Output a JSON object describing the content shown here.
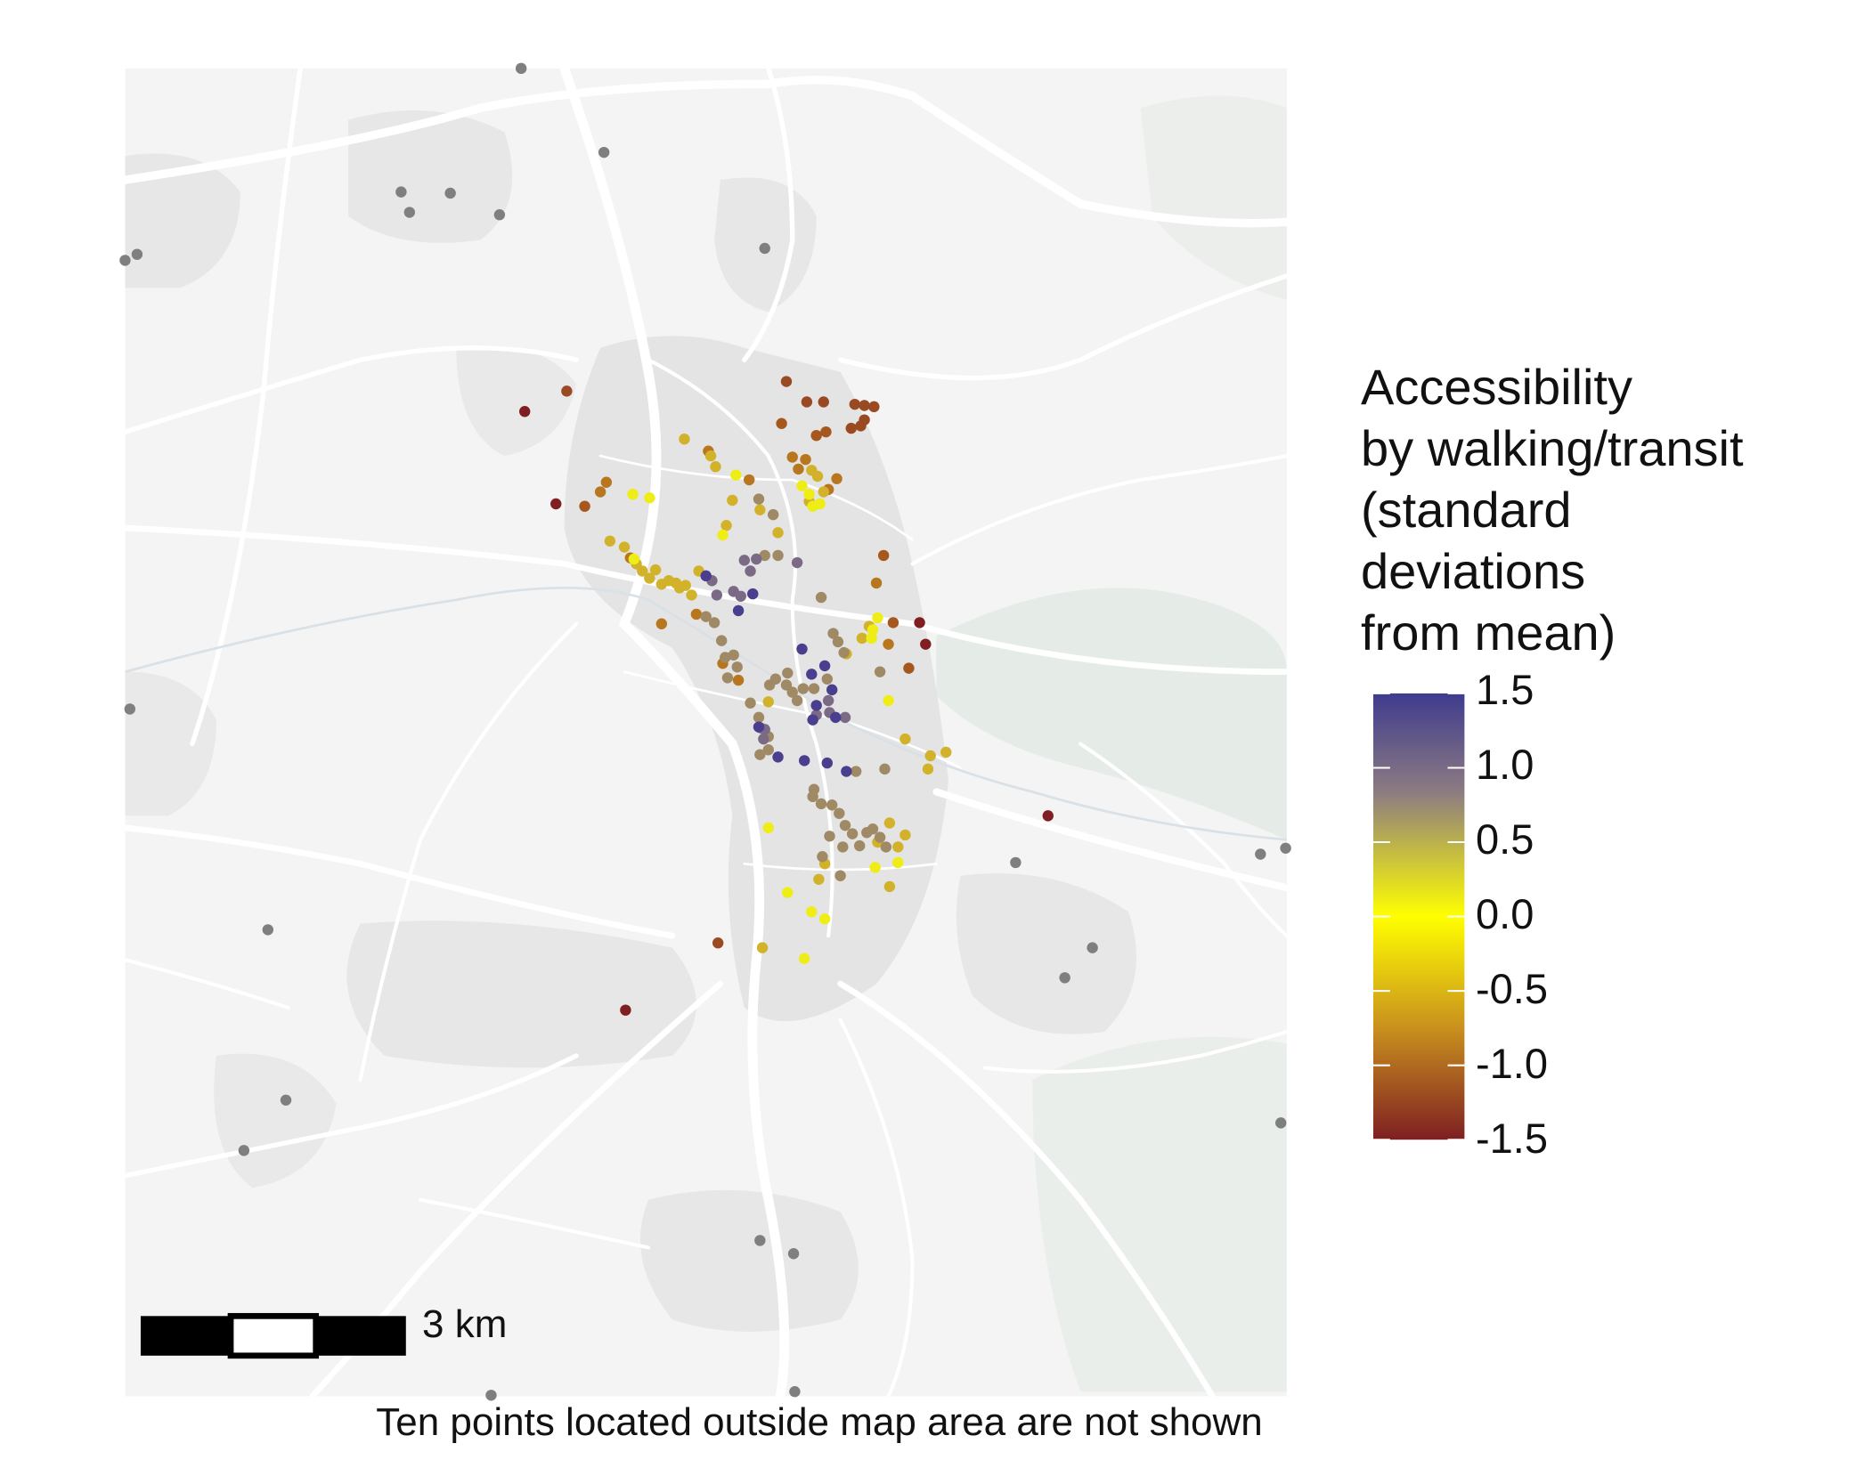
{
  "legend": {
    "title_lines": [
      "Accessibility",
      "by walking/transit",
      "(standard",
      "deviations",
      "from mean)"
    ],
    "ticks": [
      {
        "label": "1.5",
        "value": 1.5
      },
      {
        "label": "1.0",
        "value": 1.0
      },
      {
        "label": "0.5",
        "value": 0.5
      },
      {
        "label": "0.0",
        "value": 0.0
      },
      {
        "label": "-0.5",
        "value": -0.5
      },
      {
        "label": "-1.0",
        "value": -1.0
      },
      {
        "label": "-1.5",
        "value": -1.5
      }
    ],
    "colors": {
      "high": "#3f3b8e",
      "upper_mid": "#8c7b82",
      "mid": "#ffff00",
      "lower_mid": "#c9901e",
      "low": "#7e1f22"
    },
    "range": [
      -1.5,
      1.5
    ]
  },
  "scale_bar": {
    "label": "3 km"
  },
  "caption": "Ten points located outside map area are not shown",
  "colors": {
    "no_data_point": "#7f7f7f",
    "map_background": "#f2f3f2",
    "roads": "#ffffff",
    "urban": "#e4e5e4",
    "relief": "#e6ece8"
  },
  "clusters": [
    {
      "color": "#7f1f22",
      "points": [
        [
          437,
          343
        ],
        [
          463,
          420
        ],
        [
          771,
          537
        ],
        [
          766,
          519
        ],
        [
          521,
          842
        ],
        [
          873,
          680
        ]
      ]
    },
    {
      "color": "#9a4a22",
      "points": [
        [
          472,
          326
        ],
        [
          598,
          786
        ],
        [
          655,
          318
        ],
        [
          672,
          335
        ],
        [
          686,
          335
        ],
        [
          712,
          337
        ],
        [
          720,
          338
        ],
        [
          728,
          339
        ],
        [
          717,
          355
        ],
        [
          709,
          357
        ],
        [
          720,
          350
        ]
      ]
    },
    {
      "color": "#a6571e",
      "points": [
        [
          487,
          422
        ],
        [
          651,
          353
        ],
        [
          680,
          363
        ],
        [
          688,
          360
        ],
        [
          736,
          463
        ],
        [
          757,
          557
        ],
        [
          744,
          519
        ]
      ]
    },
    {
      "color": "#b8761e",
      "points": [
        [
          500,
          410
        ],
        [
          505,
          402
        ],
        [
          525,
          465
        ],
        [
          551,
          520
        ],
        [
          590,
          376
        ],
        [
          624,
          400
        ],
        [
          660,
          381
        ],
        [
          665,
          391
        ],
        [
          697,
          399
        ],
        [
          690,
          408
        ],
        [
          671,
          383
        ],
        [
          730,
          486
        ],
        [
          740,
          537
        ],
        [
          580,
          512
        ],
        [
          602,
          553
        ],
        [
          615,
          567
        ]
      ]
    },
    {
      "color": "#d2b22a",
      "points": [
        [
          508,
          451
        ],
        [
          520,
          456
        ],
        [
          530,
          470
        ],
        [
          535,
          476
        ],
        [
          541,
          482
        ],
        [
          546,
          475
        ],
        [
          551,
          487
        ],
        [
          557,
          484
        ],
        [
          563,
          486
        ],
        [
          566,
          490
        ],
        [
          571,
          488
        ],
        [
          576,
          496
        ],
        [
          582,
          476
        ],
        [
          592,
          380
        ],
        [
          596,
          389
        ],
        [
          570,
          366
        ],
        [
          605,
          438
        ],
        [
          610,
          417
        ],
        [
          648,
          444
        ],
        [
          633,
          425
        ],
        [
          676,
          392
        ],
        [
          681,
          397
        ],
        [
          674,
          418
        ],
        [
          686,
          410
        ],
        [
          640,
          585
        ],
        [
          754,
          616
        ],
        [
          773,
          641
        ],
        [
          788,
          627
        ],
        [
          775,
          630
        ],
        [
          741,
          686
        ],
        [
          731,
          702
        ],
        [
          748,
          706
        ],
        [
          754,
          696
        ],
        [
          741,
          739
        ],
        [
          682,
          733
        ],
        [
          687,
          720
        ],
        [
          635,
          790
        ],
        [
          718,
          532
        ],
        [
          724,
          522
        ],
        [
          705,
          545
        ]
      ]
    },
    {
      "color": "#eeee16",
      "points": [
        [
          527,
          412
        ],
        [
          541,
          415
        ],
        [
          528,
          466
        ],
        [
          613,
          396
        ],
        [
          602,
          446
        ],
        [
          668,
          405
        ],
        [
          674,
          412
        ],
        [
          677,
          422
        ],
        [
          683,
          420
        ],
        [
          726,
          532
        ],
        [
          727,
          525
        ],
        [
          731,
          515
        ],
        [
          740,
          584
        ],
        [
          640,
          690
        ],
        [
          748,
          719
        ],
        [
          729,
          723
        ],
        [
          656,
          744
        ],
        [
          676,
          760
        ],
        [
          687,
          766
        ],
        [
          670,
          799
        ]
      ]
    },
    {
      "color": "#a08a66",
      "points": [
        [
          588,
          514
        ],
        [
          595,
          519
        ],
        [
          601,
          534
        ],
        [
          604,
          548
        ],
        [
          611,
          546
        ],
        [
          614,
          556
        ],
        [
          606,
          565
        ],
        [
          625,
          586
        ],
        [
          632,
          598
        ],
        [
          634,
          607
        ],
        [
          640,
          614
        ],
        [
          641,
          571
        ],
        [
          646,
          566
        ],
        [
          655,
          571
        ],
        [
          660,
          577
        ],
        [
          664,
          584
        ],
        [
          669,
          574
        ],
        [
          678,
          574
        ],
        [
          689,
          566
        ],
        [
          694,
          528
        ],
        [
          698,
          535
        ],
        [
          703,
          544
        ],
        [
          677,
          664
        ],
        [
          678,
          658
        ],
        [
          684,
          670
        ],
        [
          693,
          671
        ],
        [
          699,
          678
        ],
        [
          704,
          688
        ],
        [
          710,
          695
        ],
        [
          716,
          705
        ],
        [
          722,
          694
        ],
        [
          727,
          691
        ],
        [
          733,
          698
        ],
        [
          738,
          706
        ],
        [
          702,
          706
        ],
        [
          700,
          730
        ],
        [
          691,
          697
        ],
        [
          685,
          714
        ],
        [
          640,
          625
        ],
        [
          633,
          629
        ],
        [
          632,
          416
        ],
        [
          644,
          429
        ],
        [
          648,
          463
        ],
        [
          637,
          463
        ],
        [
          684,
          498
        ],
        [
          656,
          561
        ],
        [
          733,
          560
        ],
        [
          737,
          641
        ],
        [
          713,
          643
        ]
      ]
    },
    {
      "color": "#7b6a86",
      "points": [
        [
          620,
          467
        ],
        [
          625,
          476
        ],
        [
          630,
          466
        ],
        [
          593,
          484
        ],
        [
          597,
          496
        ],
        [
          611,
          493
        ],
        [
          617,
          497
        ],
        [
          664,
          469
        ],
        [
          637,
          608
        ],
        [
          636,
          616
        ],
        [
          691,
          594
        ],
        [
          704,
          598
        ],
        [
          690,
          584
        ],
        [
          680,
          596
        ]
      ]
    },
    {
      "color": "#4a3e8e",
      "points": [
        [
          588,
          480
        ],
        [
          627,
          495
        ],
        [
          615,
          509
        ],
        [
          668,
          541
        ],
        [
          676,
          562
        ],
        [
          687,
          555
        ],
        [
          693,
          575
        ],
        [
          696,
          598
        ],
        [
          680,
          588
        ],
        [
          677,
          600
        ],
        [
          648,
          631
        ],
        [
          670,
          634
        ],
        [
          689,
          636
        ],
        [
          705,
          643
        ],
        [
          632,
          606
        ]
      ]
    },
    {
      "color": "#7f7f7f",
      "points": [
        [
          434,
          57
        ],
        [
          503,
          127
        ],
        [
          334,
          160
        ],
        [
          375,
          161
        ],
        [
          341,
          177
        ],
        [
          416,
          179
        ],
        [
          637,
          207
        ],
        [
          104,
          217
        ],
        [
          114,
          212
        ],
        [
          108,
          591
        ],
        [
          223,
          775
        ],
        [
          238,
          917
        ],
        [
          203,
          959
        ],
        [
          846,
          719
        ],
        [
          1050,
          712
        ],
        [
          1071,
          707
        ],
        [
          910,
          790
        ],
        [
          887,
          815
        ],
        [
          1067,
          936
        ],
        [
          633,
          1034
        ],
        [
          661,
          1045
        ],
        [
          409,
          1163
        ],
        [
          662,
          1160
        ]
      ]
    }
  ]
}
